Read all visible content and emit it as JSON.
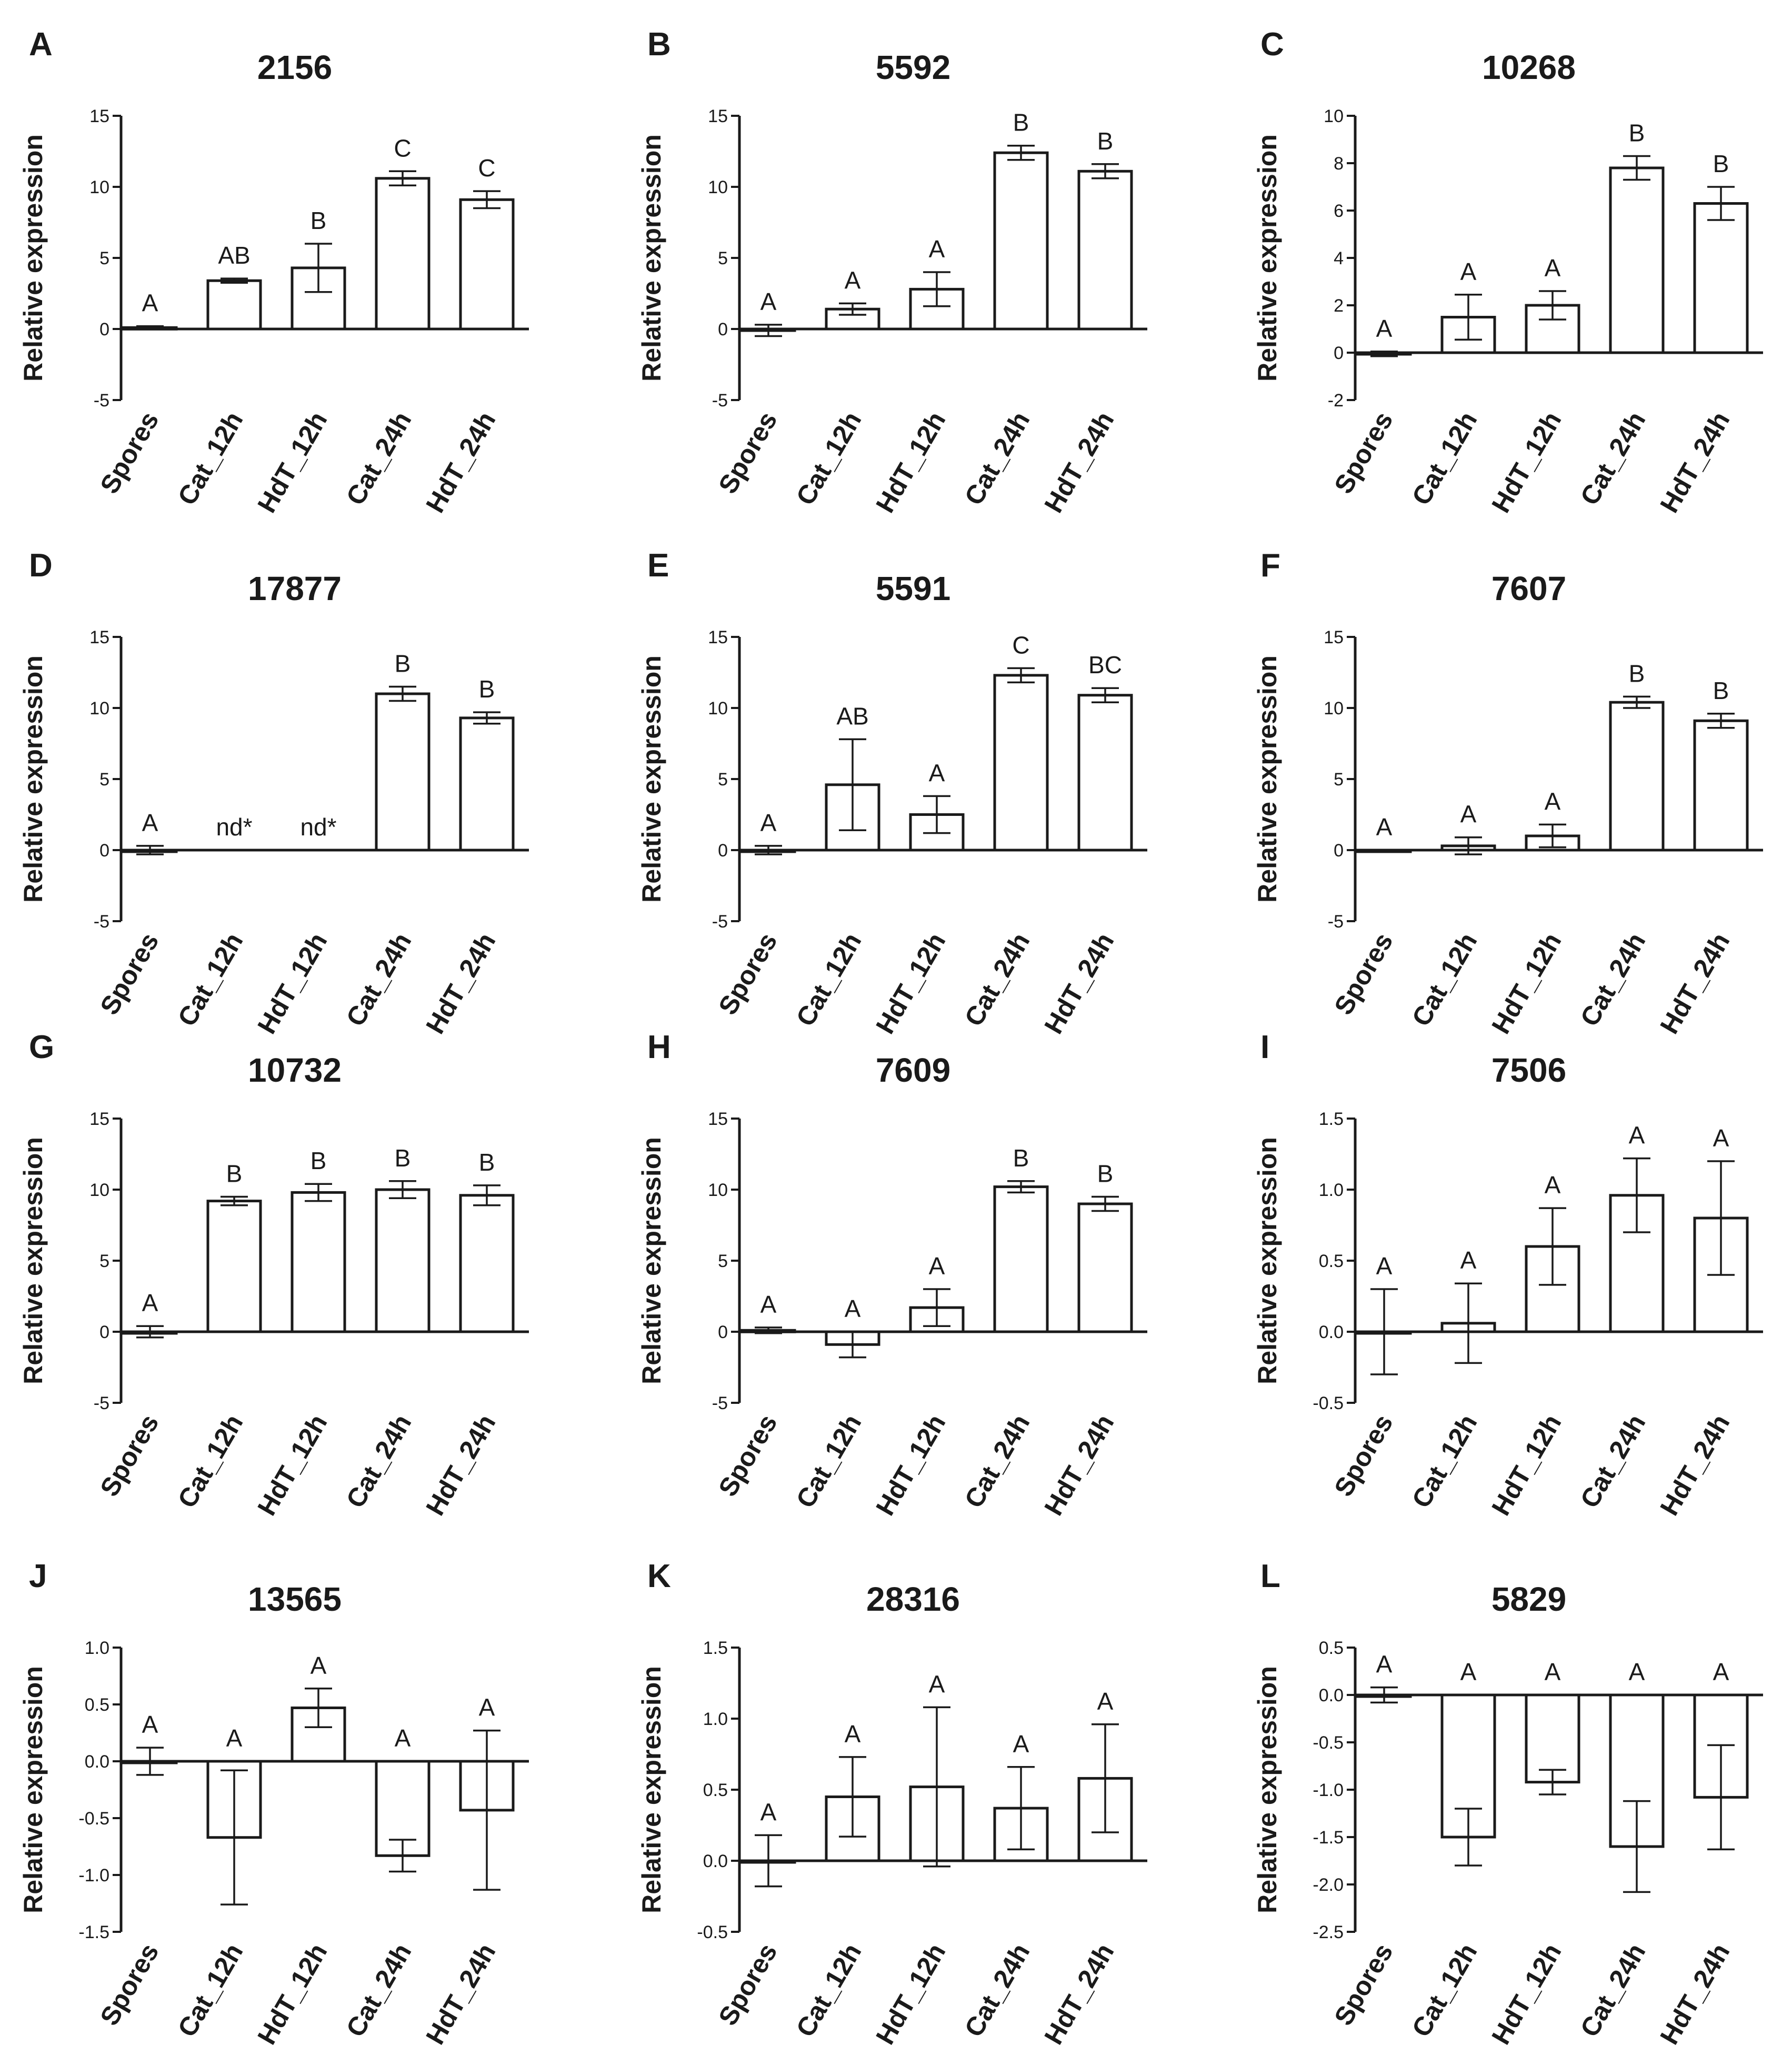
{
  "figure": {
    "y_axis_label": "Relative expression",
    "categories": [
      "Spores",
      "Cat_12h",
      "HdT_12h",
      "Cat_24h",
      "HdT_24h"
    ]
  },
  "chart_data": [
    {
      "panel": "A",
      "type": "bar",
      "title": "2156",
      "ylabel": "Relative expression",
      "ylim": [
        -5,
        15
      ],
      "yticks": [
        -5,
        0,
        5,
        10,
        15
      ],
      "categories": [
        "Spores",
        "Cat_12h",
        "HdT_12h",
        "Cat_24h",
        "HdT_24h"
      ],
      "values": [
        0.1,
        3.4,
        4.3,
        10.6,
        9.1
      ],
      "errors": [
        0.1,
        0.15,
        1.7,
        0.5,
        0.6
      ],
      "significance_letters": [
        "A",
        "AB",
        "B",
        "C",
        "C"
      ]
    },
    {
      "panel": "B",
      "type": "bar",
      "title": "5592",
      "ylabel": "Relative expression",
      "ylim": [
        -5,
        15
      ],
      "yticks": [
        -5,
        0,
        5,
        10,
        15
      ],
      "categories": [
        "Spores",
        "Cat_12h",
        "HdT_12h",
        "Cat_24h",
        "HdT_24h"
      ],
      "values": [
        -0.1,
        1.4,
        2.8,
        12.4,
        11.1
      ],
      "errors": [
        0.4,
        0.4,
        1.2,
        0.5,
        0.5
      ],
      "significance_letters": [
        "A",
        "A",
        "A",
        "B",
        "B"
      ]
    },
    {
      "panel": "C",
      "type": "bar",
      "title": "10268",
      "ylabel": "Relative expression",
      "ylim": [
        -2,
        10
      ],
      "yticks": [
        -2,
        0,
        2,
        4,
        6,
        8,
        10
      ],
      "categories": [
        "Spores",
        "Cat_12h",
        "HdT_12h",
        "Cat_24h",
        "HdT_24h"
      ],
      "values": [
        -0.05,
        1.5,
        2.0,
        7.8,
        6.3
      ],
      "errors": [
        0.1,
        0.95,
        0.6,
        0.5,
        0.7
      ],
      "significance_letters": [
        "A",
        "A",
        "A",
        "B",
        "B"
      ]
    },
    {
      "panel": "D",
      "type": "bar",
      "title": "17877",
      "ylabel": "Relative expression",
      "ylim": [
        -5,
        15
      ],
      "yticks": [
        -5,
        0,
        5,
        10,
        15
      ],
      "categories": [
        "Spores",
        "Cat_12h",
        "HdT_12h",
        "Cat_24h",
        "HdT_24h"
      ],
      "values": [
        0.0,
        null,
        null,
        11.0,
        9.3
      ],
      "errors": [
        0.3,
        0,
        0,
        0.5,
        0.4
      ],
      "significance_letters": [
        "A",
        "nd*",
        "nd*",
        "B",
        "B"
      ]
    },
    {
      "panel": "E",
      "type": "bar",
      "title": "5591",
      "ylabel": "Relative expression",
      "ylim": [
        -5,
        15
      ],
      "yticks": [
        -5,
        0,
        5,
        10,
        15
      ],
      "categories": [
        "Spores",
        "Cat_12h",
        "HdT_12h",
        "Cat_24h",
        "HdT_24h"
      ],
      "values": [
        0.0,
        4.6,
        2.5,
        12.3,
        10.9
      ],
      "errors": [
        0.3,
        3.2,
        1.3,
        0.5,
        0.5
      ],
      "significance_letters": [
        "A",
        "AB",
        "A",
        "C",
        "BC"
      ]
    },
    {
      "panel": "F",
      "type": "bar",
      "title": "7607",
      "ylabel": "Relative expression",
      "ylim": [
        -5,
        15
      ],
      "yticks": [
        -5,
        0,
        5,
        10,
        15
      ],
      "categories": [
        "Spores",
        "Cat_12h",
        "HdT_12h",
        "Cat_24h",
        "HdT_24h"
      ],
      "values": [
        0.0,
        0.3,
        1.0,
        10.4,
        9.1
      ],
      "errors": [
        0,
        0.6,
        0.8,
        0.4,
        0.5
      ],
      "significance_letters": [
        "A",
        "A",
        "A",
        "B",
        "B"
      ]
    },
    {
      "panel": "G",
      "type": "bar",
      "title": "10732",
      "ylabel": "Relative expression",
      "ylim": [
        -5,
        15
      ],
      "yticks": [
        -5,
        0,
        5,
        10,
        15
      ],
      "categories": [
        "Spores",
        "Cat_12h",
        "HdT_12h",
        "Cat_24h",
        "HdT_24h"
      ],
      "values": [
        0.0,
        9.2,
        9.8,
        10.0,
        9.6
      ],
      "errors": [
        0.4,
        0.3,
        0.6,
        0.6,
        0.7
      ],
      "significance_letters": [
        "A",
        "B",
        "B",
        "B",
        "B"
      ]
    },
    {
      "panel": "H",
      "type": "bar",
      "title": "7609",
      "ylabel": "Relative expression",
      "ylim": [
        -5,
        15
      ],
      "yticks": [
        -5,
        0,
        5,
        10,
        15
      ],
      "categories": [
        "Spores",
        "Cat_12h",
        "HdT_12h",
        "Cat_24h",
        "HdT_24h"
      ],
      "values": [
        0.1,
        -0.9,
        1.7,
        10.2,
        9.0
      ],
      "errors": [
        0.2,
        0.9,
        1.3,
        0.4,
        0.5
      ],
      "significance_letters": [
        "A",
        "A",
        "A",
        "B",
        "B"
      ]
    },
    {
      "panel": "I",
      "type": "bar",
      "title": "7506",
      "ylabel": "Relative expression",
      "ylim": [
        -0.5,
        1.5
      ],
      "yticks": [
        -0.5,
        0.0,
        0.5,
        1.0,
        1.5
      ],
      "categories": [
        "Spores",
        "Cat_12h",
        "HdT_12h",
        "Cat_24h",
        "HdT_24h"
      ],
      "values": [
        0.0,
        0.06,
        0.6,
        0.96,
        0.8
      ],
      "errors": [
        0.3,
        0.28,
        0.27,
        0.26,
        0.4
      ],
      "significance_letters": [
        "A",
        "A",
        "A",
        "A",
        "A"
      ]
    },
    {
      "panel": "J",
      "type": "bar",
      "title": "13565",
      "ylabel": "Relative expression",
      "ylim": [
        -1.5,
        1.0
      ],
      "yticks": [
        -1.5,
        -1.0,
        -0.5,
        0.0,
        0.5,
        1.0
      ],
      "categories": [
        "Spores",
        "Cat_12h",
        "HdT_12h",
        "Cat_24h",
        "HdT_24h"
      ],
      "values": [
        0.0,
        -0.67,
        0.47,
        -0.83,
        -0.43
      ],
      "errors": [
        0.12,
        0.59,
        0.17,
        0.14,
        0.7
      ],
      "significance_letters": [
        "A",
        "A",
        "A",
        "A",
        "A"
      ]
    },
    {
      "panel": "K",
      "type": "bar",
      "title": "28316",
      "ylabel": "Relative expression",
      "ylim": [
        -0.5,
        1.5
      ],
      "yticks": [
        -0.5,
        0.0,
        0.5,
        1.0,
        1.5
      ],
      "categories": [
        "Spores",
        "Cat_12h",
        "HdT_12h",
        "Cat_24h",
        "HdT_24h"
      ],
      "values": [
        0.0,
        0.45,
        0.52,
        0.37,
        0.58
      ],
      "errors": [
        0.18,
        0.28,
        0.56,
        0.29,
        0.38
      ],
      "significance_letters": [
        "A",
        "A",
        "A",
        "A",
        "A"
      ]
    },
    {
      "panel": "L",
      "type": "bar",
      "title": "5829",
      "ylabel": "Relative expression",
      "ylim": [
        -2.5,
        0.5
      ],
      "yticks": [
        -2.5,
        -2.0,
        -1.5,
        -1.0,
        -0.5,
        0.0,
        0.5
      ],
      "categories": [
        "Spores",
        "Cat_12h",
        "HdT_12h",
        "Cat_24h",
        "HdT_24h"
      ],
      "values": [
        0.0,
        -1.5,
        -0.92,
        -1.6,
        -1.08
      ],
      "errors": [
        0.08,
        0.3,
        0.13,
        0.48,
        0.55
      ],
      "significance_letters": [
        "A",
        "A",
        "A",
        "A",
        "A"
      ]
    }
  ]
}
